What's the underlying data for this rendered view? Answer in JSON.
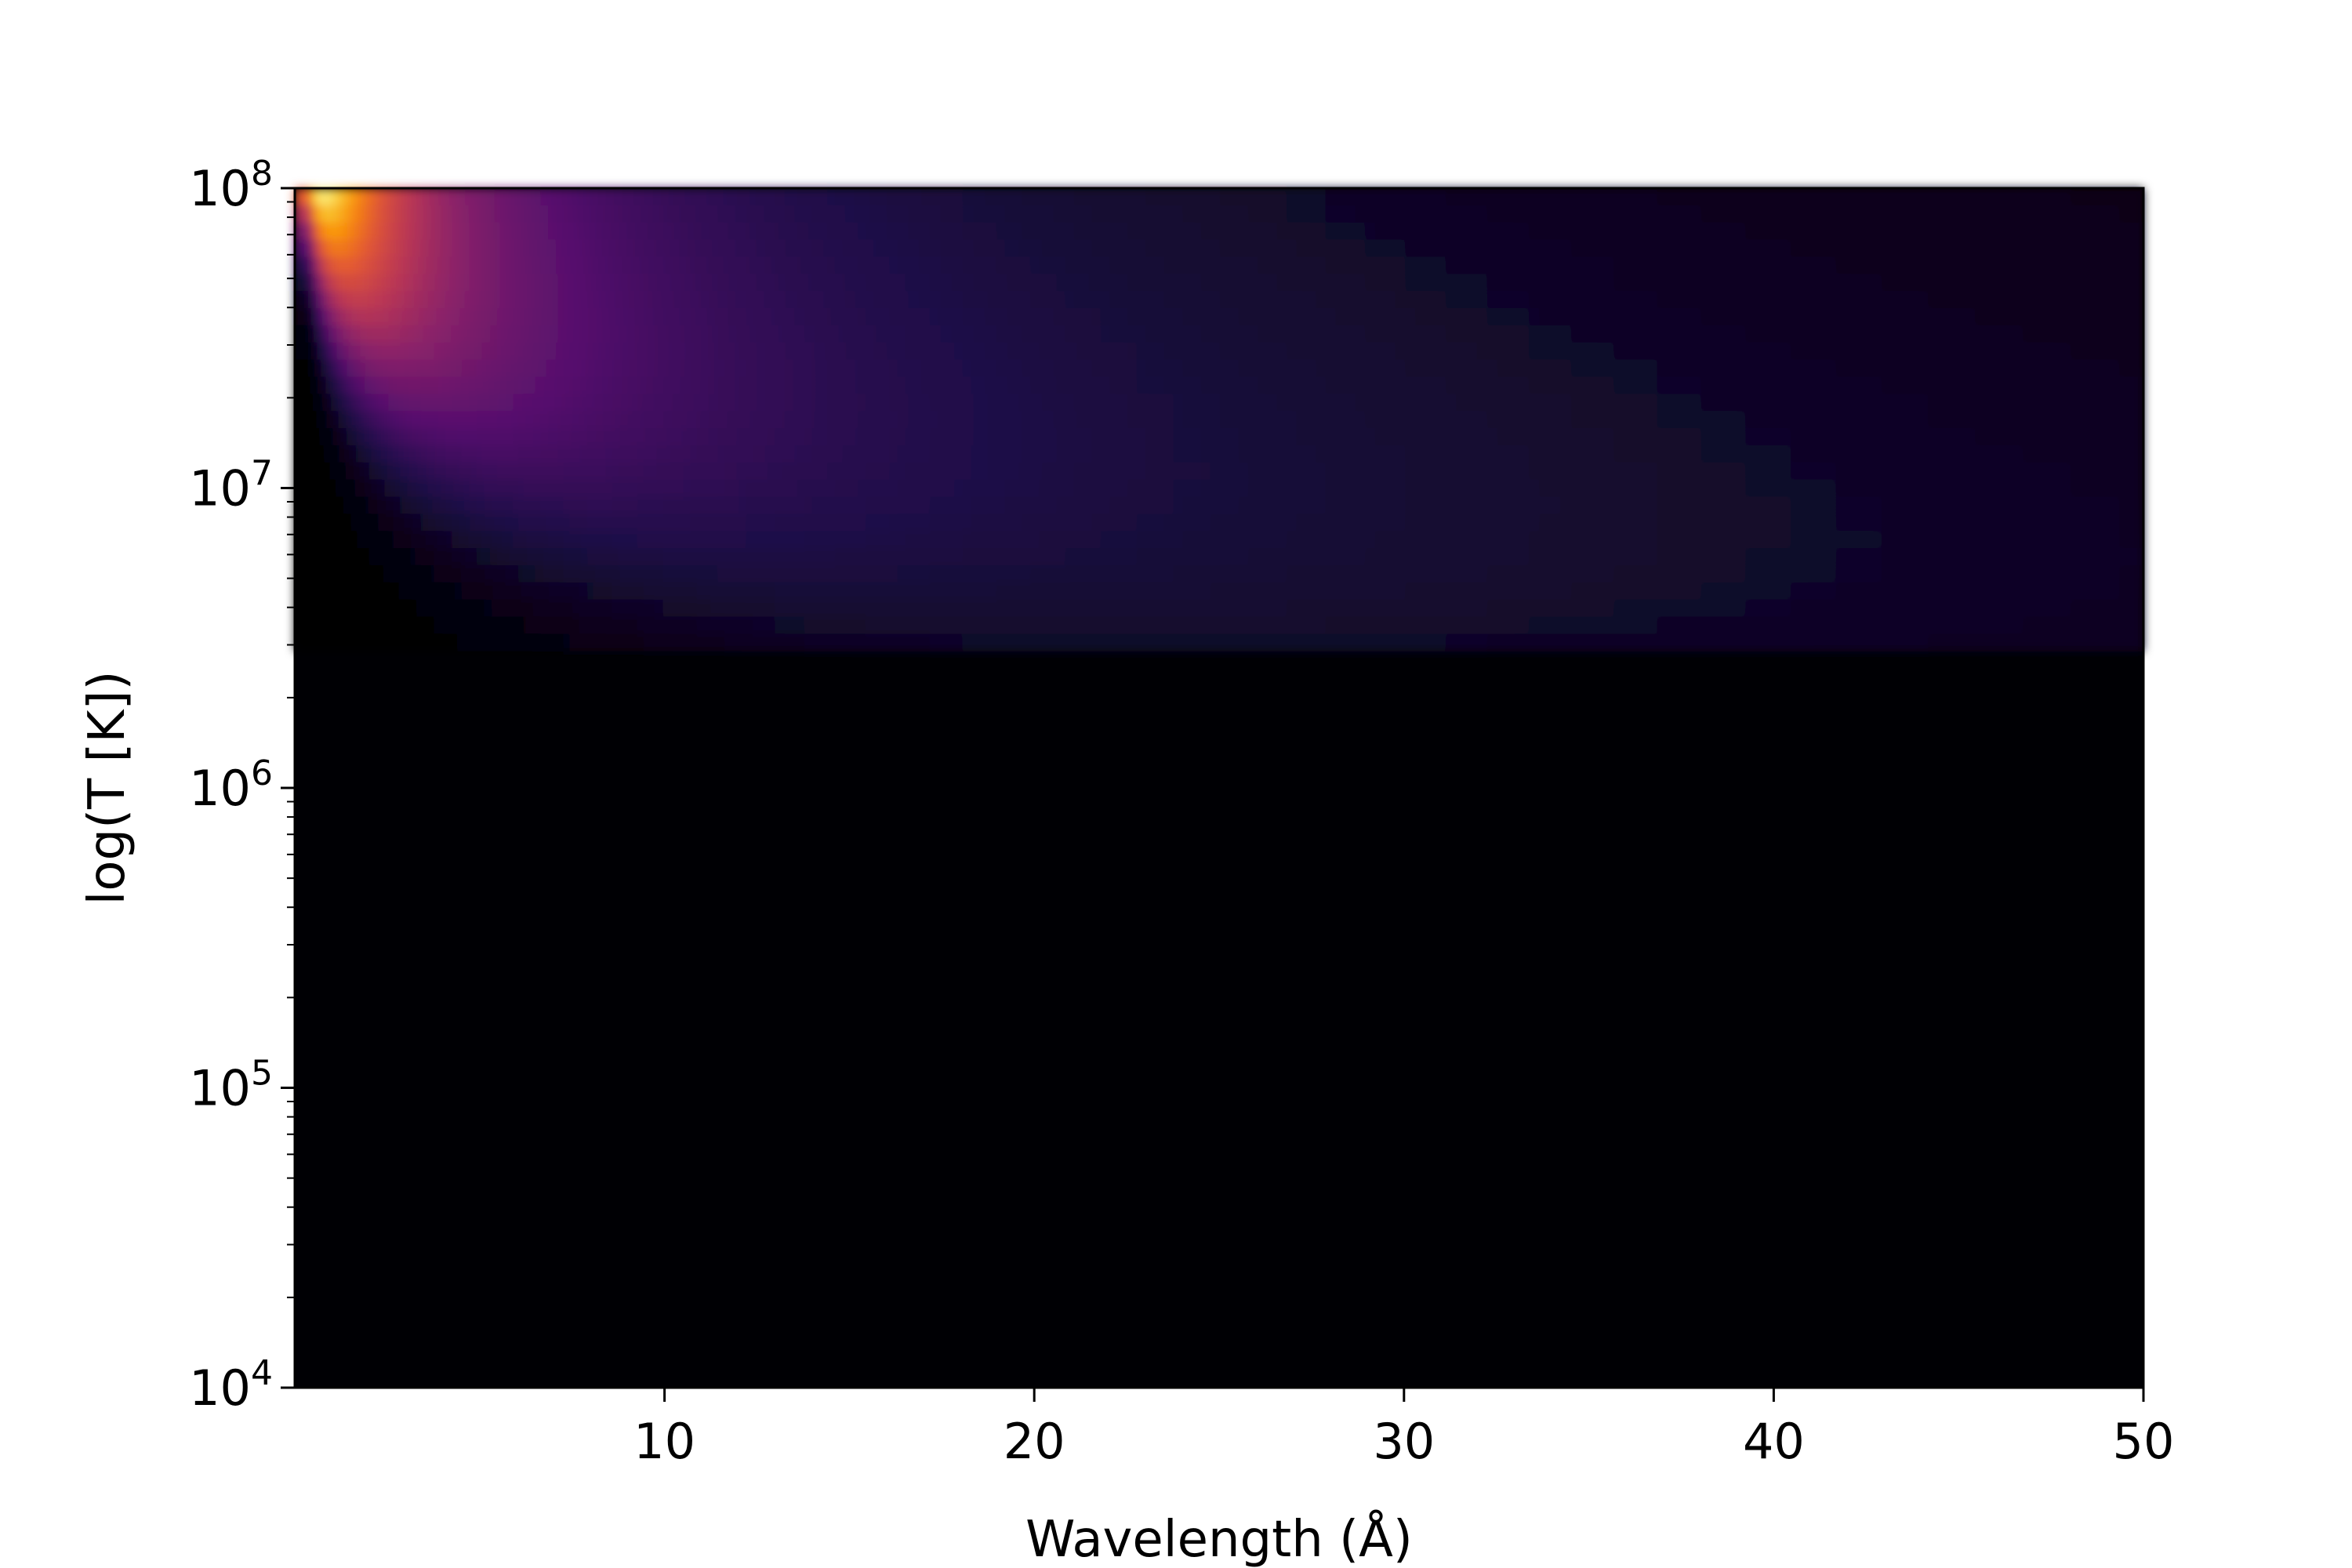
{
  "chart_data": {
    "type": "heatmap",
    "title": "",
    "xlabel": "Wavelength (Å)",
    "ylabel": "log(T [K])",
    "xlim": [
      0,
      50
    ],
    "ylim": [
      10000,
      100000000
    ],
    "yscale": "log",
    "colormap": "inferno",
    "x_ticks": [
      {
        "value": 10,
        "label": "10"
      },
      {
        "value": 20,
        "label": "20"
      },
      {
        "value": 30,
        "label": "30"
      },
      {
        "value": 40,
        "label": "40"
      },
      {
        "value": 50,
        "label": "50"
      }
    ],
    "y_ticks": [
      {
        "value": 10000,
        "base": "10",
        "exp": "4"
      },
      {
        "value": 100000,
        "base": "10",
        "exp": "5"
      },
      {
        "value": 1000000,
        "base": "10",
        "exp": "6"
      },
      {
        "value": 10000000,
        "base": "10",
        "exp": "7"
      },
      {
        "value": 100000000,
        "base": "10",
        "exp": "8"
      }
    ],
    "intensity_peak": {
      "wavelength": 0.6,
      "temperature": 100000000
    },
    "grid": false,
    "legend": "none"
  }
}
